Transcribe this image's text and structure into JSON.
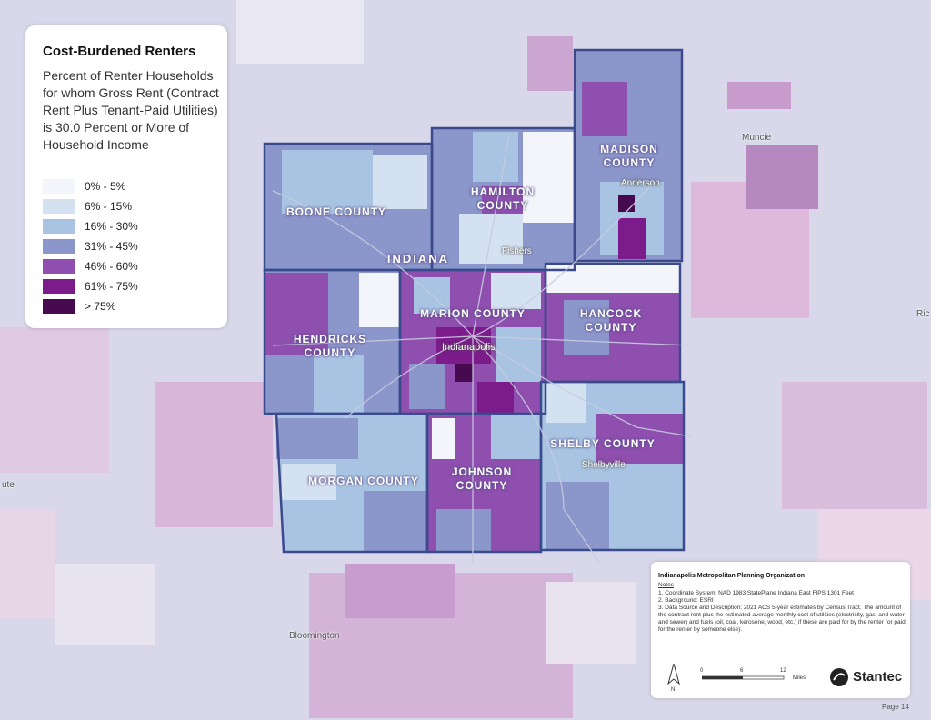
{
  "legend": {
    "title": "Cost-Burdened Renters",
    "description": "Percent of Renter Households for whom Gross Rent (Contract Rent Plus Tenant-Paid Utilities) is 30.0 Percent or More of Household Income",
    "classes": [
      {
        "label": "0% - 5%",
        "color": "#f3f5fb"
      },
      {
        "label": "6% - 15%",
        "color": "#d4e1f0"
      },
      {
        "label": "16% - 30%",
        "color": "#a8c4e2"
      },
      {
        "label": "31% - 45%",
        "color": "#8b96cb"
      },
      {
        "label": "46% - 60%",
        "color": "#8e4fae"
      },
      {
        "label": "61% - 75%",
        "color": "#7b1c8a"
      },
      {
        "label": "> 75%",
        "color": "#470a4f"
      }
    ]
  },
  "counties": {
    "boone": "BOONE COUNTY",
    "hamilton": "HAMILTON COUNTY",
    "madison": "MADISON COUNTY",
    "marion": "MARION COUNTY",
    "hendricks": "HENDRICKS COUNTY",
    "hancock": "HANCOCK COUNTY",
    "morgan": "MORGAN COUNTY",
    "johnson": "JOHNSON COUNTY",
    "shelby": "SHELBY COUNTY"
  },
  "places": {
    "indiana": "INDIANA",
    "muncie": "Muncie",
    "anderson": "Anderson",
    "fishers": "Fishers",
    "indianapolis": "Indianapolis",
    "shelbyville": "Shelbyville",
    "bloomington": "Bloomington",
    "left_edge": "ute",
    "right_edge": "Ric"
  },
  "notes": {
    "organization": "Indianapolis Metropolitan Planning Organization",
    "heading": "Notes",
    "lines": [
      "1. Coordinate System: NAD 1983 StatePlane Indiana East FIPS 1301 Feet",
      "2. Background: ESRI",
      "3. Data Source and Description: 2021 ACS 5-year estimates by Census Tract. The amount of the contract rent plus the estimated average monthly cost of utilities (electricity, gas, and water and sewer) and fuels (oil, coal, kerosene, wood, etc.) if these are paid for by the renter (or paid for the renter by someone else)."
    ],
    "scale": {
      "ticks": [
        "0",
        "6",
        "12"
      ],
      "unit": "Miles"
    },
    "north": "N",
    "brand": "Stantec"
  },
  "page": "Page 14",
  "colors": {
    "outline": "#3b4a8c",
    "background": "#d9d8ea"
  }
}
